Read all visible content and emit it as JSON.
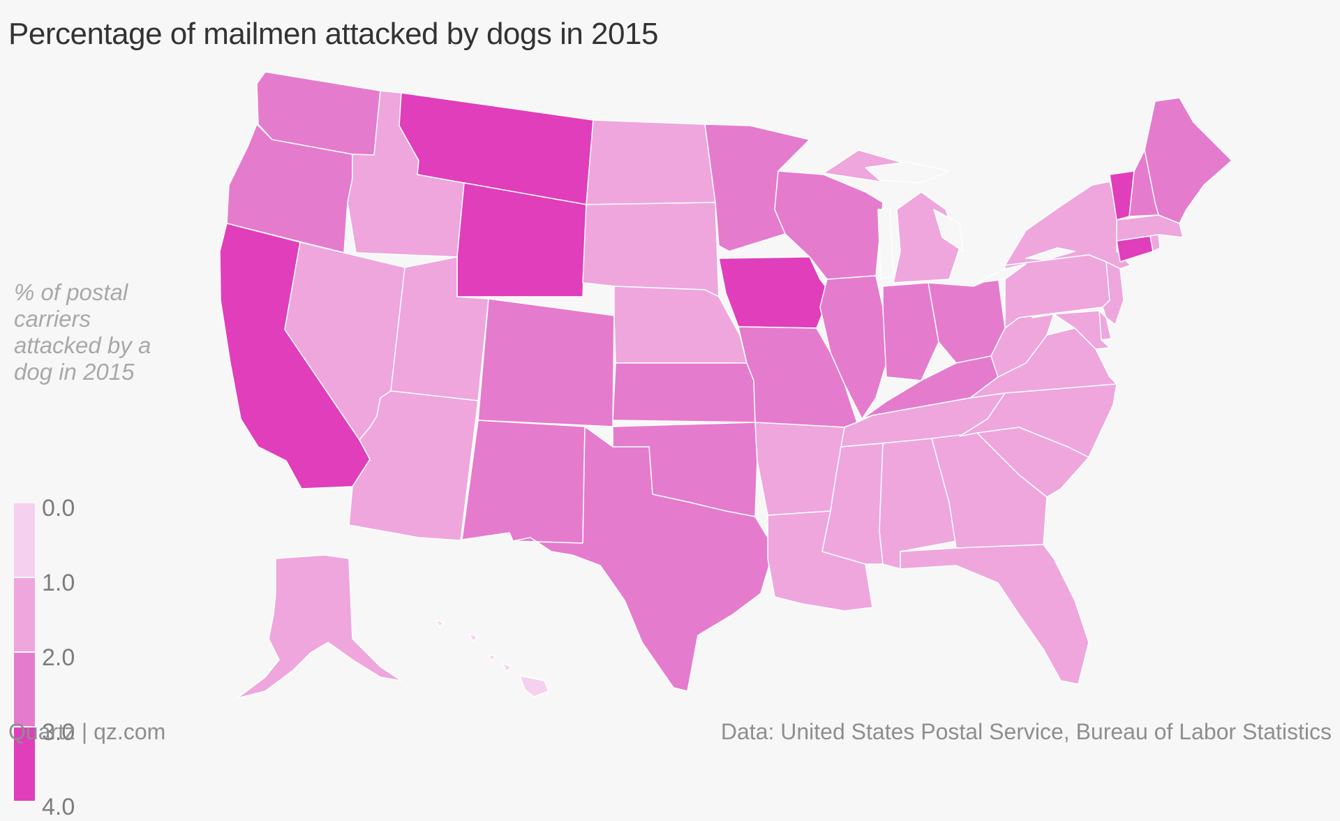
{
  "title": "Percentage of mailmen attacked by dogs in 2015",
  "legend": {
    "title": "% of postal carriers attacked by a dog in 2015",
    "ticks": [
      "0.0",
      "1.0",
      "2.0",
      "3.0",
      "4.0"
    ],
    "bins": [
      {
        "range": [
          0,
          1
        ],
        "color": "#f5d0ef"
      },
      {
        "range": [
          1,
          2
        ],
        "color": "#eea6dd"
      },
      {
        "range": [
          2,
          3
        ],
        "color": "#e57bcd"
      },
      {
        "range": [
          3,
          4
        ],
        "color": "#e03ebb"
      }
    ]
  },
  "footer": {
    "source": "Quartz | qz.com",
    "credit": "Data: United States Postal Service, Bureau of Labor Statistics"
  },
  "map_data": {
    "type": "choropleth",
    "region": "United States",
    "value_unit": "% of postal carriers attacked by a dog in 2015",
    "states_by_bin": {
      "0-1": [
        "HI"
      ],
      "1-2": [
        "ID",
        "NV",
        "UT",
        "AZ",
        "ND",
        "SD",
        "NE",
        "MI",
        "AR",
        "LA",
        "MS",
        "AL",
        "TN",
        "GA",
        "FL",
        "SC",
        "NC",
        "VA",
        "WV",
        "PA",
        "NY",
        "NJ",
        "MD",
        "DE",
        "MA",
        "RI",
        "AK"
      ],
      "2-3": [
        "WA",
        "OR",
        "CO",
        "NM",
        "TX",
        "KS",
        "OK",
        "MO",
        "MN",
        "WI",
        "IL",
        "IN",
        "OH",
        "KY",
        "ME",
        "NH"
      ],
      "3-4": [
        "CA",
        "MT",
        "WY",
        "IA",
        "VT",
        "CT"
      ]
    }
  }
}
